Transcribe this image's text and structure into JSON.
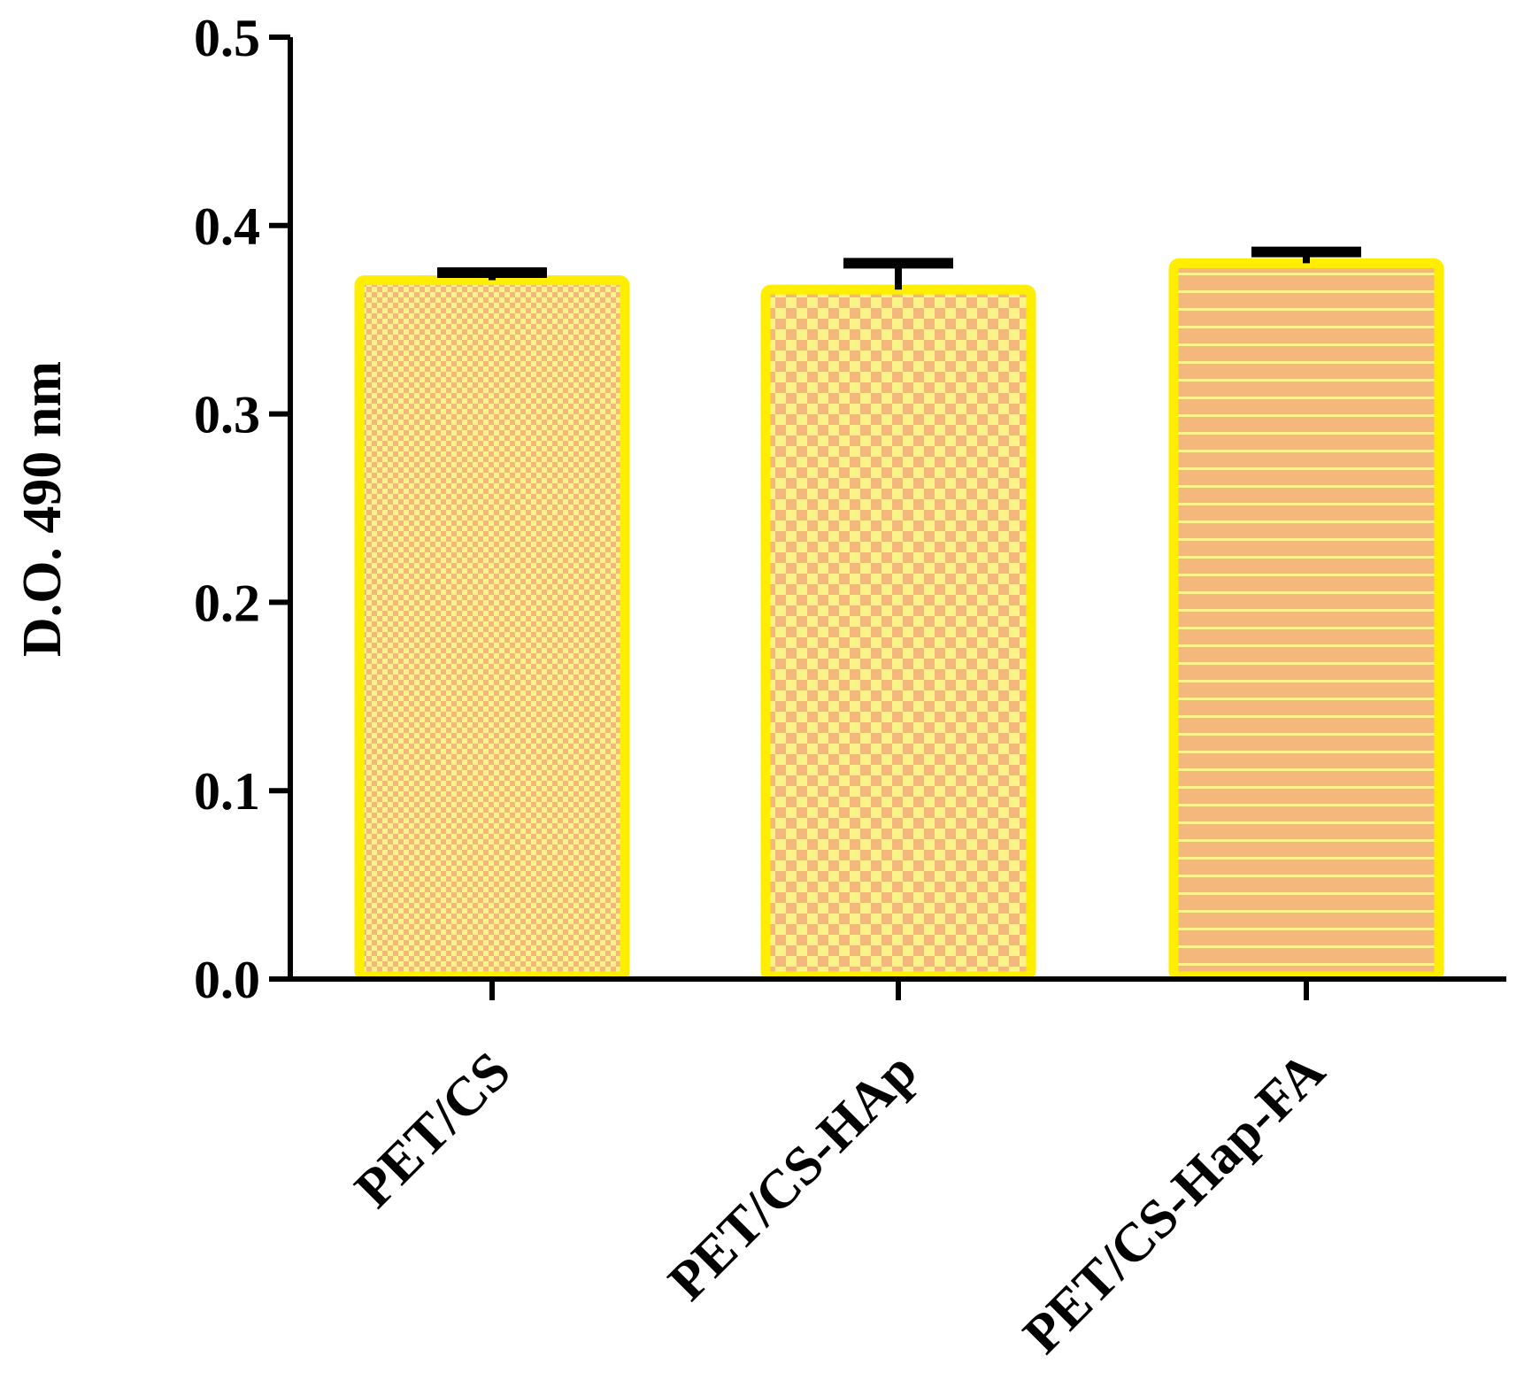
{
  "chart_data": {
    "type": "bar",
    "title": "",
    "xlabel": "",
    "ylabel": "D.O. 490 nm",
    "ylim": [
      0,
      0.5
    ],
    "yticks": [
      "0.0",
      "0.1",
      "0.2",
      "0.3",
      "0.4",
      "0.5"
    ],
    "grid": false,
    "categories": [
      "PET/CS",
      "PET/CS-HAp",
      "PET/CS-Hap-FA"
    ],
    "values": [
      0.371,
      0.366,
      0.38
    ],
    "errors": [
      0.004,
      0.014,
      0.006
    ],
    "colors": {
      "bar_outline": "#ffee00",
      "fill_orange": "#f5b87c",
      "fill_yellow": "#fbf28a",
      "axis": "#000000"
    },
    "patterns": [
      "fine-checker",
      "coarse-checker",
      "horizontal-stripes"
    ]
  }
}
